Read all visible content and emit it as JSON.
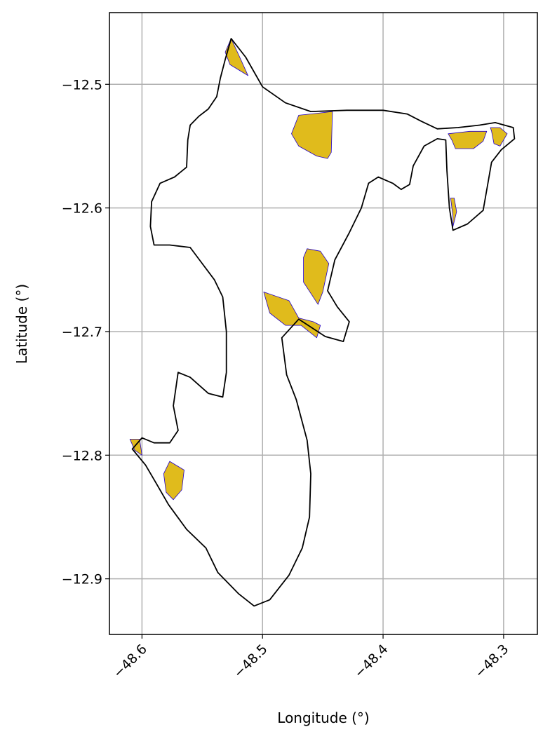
{
  "chart_data": {
    "type": "map",
    "xlabel": "Longitude (°)",
    "ylabel": "Latitude (°)",
    "xlim": [
      -48.627,
      -48.272
    ],
    "ylim": [
      -12.945,
      -12.442
    ],
    "grid": true,
    "xticks": [
      -48.6,
      -48.5,
      -48.4,
      -48.3
    ],
    "yticks": [
      -12.9,
      -12.8,
      -12.7,
      -12.6,
      -12.5
    ],
    "xtick_labels": [
      "−48.6",
      "−48.5",
      "−48.4",
      "−48.3"
    ],
    "ytick_labels": [
      "−12.9",
      "−12.8",
      "−12.7",
      "−12.6",
      "−12.5"
    ],
    "boundary": {
      "stroke": "#000000",
      "points": [
        [
          -48.526,
          -12.463
        ],
        [
          -48.514,
          -12.478
        ],
        [
          -48.5,
          -12.502
        ],
        [
          -48.481,
          -12.515
        ],
        [
          -48.46,
          -12.522
        ],
        [
          -48.43,
          -12.521
        ],
        [
          -48.4,
          -12.521
        ],
        [
          -48.38,
          -12.524
        ],
        [
          -48.368,
          -12.53
        ],
        [
          -48.355,
          -12.536
        ],
        [
          -48.338,
          -12.535
        ],
        [
          -48.32,
          -12.533
        ],
        [
          -48.307,
          -12.531
        ],
        [
          -48.292,
          -12.535
        ],
        [
          -48.291,
          -12.544
        ],
        [
          -48.302,
          -12.553
        ],
        [
          -48.31,
          -12.563
        ],
        [
          -48.313,
          -12.58
        ],
        [
          -48.317,
          -12.602
        ],
        [
          -48.33,
          -12.613
        ],
        [
          -48.342,
          -12.618
        ],
        [
          -48.345,
          -12.6
        ],
        [
          -48.347,
          -12.57
        ],
        [
          -48.348,
          -12.545
        ],
        [
          -48.355,
          -12.544
        ],
        [
          -48.366,
          -12.55
        ],
        [
          -48.375,
          -12.566
        ],
        [
          -48.378,
          -12.581
        ],
        [
          -48.385,
          -12.585
        ],
        [
          -48.392,
          -12.58
        ],
        [
          -48.404,
          -12.575
        ],
        [
          -48.412,
          -12.58
        ],
        [
          -48.418,
          -12.6
        ],
        [
          -48.428,
          -12.62
        ],
        [
          -48.44,
          -12.642
        ],
        [
          -48.446,
          -12.667
        ],
        [
          -48.438,
          -12.68
        ],
        [
          -48.428,
          -12.692
        ],
        [
          -48.433,
          -12.708
        ],
        [
          -48.448,
          -12.704
        ],
        [
          -48.47,
          -12.69
        ],
        [
          -48.484,
          -12.705
        ],
        [
          -48.48,
          -12.735
        ],
        [
          -48.472,
          -12.755
        ],
        [
          -48.463,
          -12.788
        ],
        [
          -48.46,
          -12.815
        ],
        [
          -48.461,
          -12.85
        ],
        [
          -48.467,
          -12.875
        ],
        [
          -48.478,
          -12.897
        ],
        [
          -48.494,
          -12.917
        ],
        [
          -48.507,
          -12.922
        ],
        [
          -48.52,
          -12.912
        ],
        [
          -48.537,
          -12.895
        ],
        [
          -48.547,
          -12.875
        ],
        [
          -48.563,
          -12.86
        ],
        [
          -48.578,
          -12.84
        ],
        [
          -48.588,
          -12.823
        ],
        [
          -48.597,
          -12.808
        ],
        [
          -48.608,
          -12.795
        ],
        [
          -48.6,
          -12.786
        ],
        [
          -48.59,
          -12.79
        ],
        [
          -48.577,
          -12.79
        ],
        [
          -48.57,
          -12.78
        ],
        [
          -48.574,
          -12.76
        ],
        [
          -48.57,
          -12.733
        ],
        [
          -48.56,
          -12.737
        ],
        [
          -48.545,
          -12.75
        ],
        [
          -48.533,
          -12.753
        ],
        [
          -48.53,
          -12.733
        ],
        [
          -48.53,
          -12.7
        ],
        [
          -48.533,
          -12.672
        ],
        [
          -48.54,
          -12.658
        ],
        [
          -48.55,
          -12.645
        ],
        [
          -48.56,
          -12.632
        ],
        [
          -48.577,
          -12.63
        ],
        [
          -48.59,
          -12.63
        ],
        [
          -48.593,
          -12.615
        ],
        [
          -48.592,
          -12.595
        ],
        [
          -48.585,
          -12.58
        ],
        [
          -48.573,
          -12.575
        ],
        [
          -48.563,
          -12.567
        ],
        [
          -48.562,
          -12.545
        ],
        [
          -48.56,
          -12.533
        ],
        [
          -48.553,
          -12.526
        ],
        [
          -48.545,
          -12.52
        ],
        [
          -48.538,
          -12.51
        ],
        [
          -48.535,
          -12.495
        ],
        [
          -48.531,
          -12.48
        ],
        [
          -48.526,
          -12.463
        ]
      ]
    },
    "patches": {
      "fill": "#e0bb1c",
      "stroke": "#2200cc",
      "polygons": [
        [
          [
            -48.526,
            -12.463
          ],
          [
            -48.518,
            -12.48
          ],
          [
            -48.512,
            -12.493
          ],
          [
            -48.527,
            -12.484
          ],
          [
            -48.531,
            -12.474
          ]
        ],
        [
          [
            -48.46,
            -12.524
          ],
          [
            -48.442,
            -12.522
          ],
          [
            -48.443,
            -12.555
          ],
          [
            -48.446,
            -12.56
          ],
          [
            -48.455,
            -12.558
          ],
          [
            -48.47,
            -12.55
          ],
          [
            -48.476,
            -12.54
          ],
          [
            -48.47,
            -12.525
          ]
        ],
        [
          [
            -48.346,
            -12.54
          ],
          [
            -48.328,
            -12.538
          ],
          [
            -48.314,
            -12.538
          ],
          [
            -48.317,
            -12.546
          ],
          [
            -48.325,
            -12.552
          ],
          [
            -48.34,
            -12.552
          ],
          [
            -48.343,
            -12.545
          ]
        ],
        [
          [
            -48.311,
            -12.535
          ],
          [
            -48.303,
            -12.535
          ],
          [
            -48.297,
            -12.54
          ],
          [
            -48.303,
            -12.55
          ],
          [
            -48.308,
            -12.548
          ],
          [
            -48.31,
            -12.538
          ]
        ],
        [
          [
            -48.344,
            -12.592
          ],
          [
            -48.342,
            -12.607
          ],
          [
            -48.342,
            -12.615
          ],
          [
            -48.339,
            -12.603
          ],
          [
            -48.341,
            -12.592
          ]
        ],
        [
          [
            -48.463,
            -12.633
          ],
          [
            -48.452,
            -12.635
          ],
          [
            -48.445,
            -12.645
          ],
          [
            -48.45,
            -12.668
          ],
          [
            -48.454,
            -12.678
          ],
          [
            -48.466,
            -12.66
          ],
          [
            -48.466,
            -12.64
          ]
        ],
        [
          [
            -48.499,
            -12.668
          ],
          [
            -48.478,
            -12.675
          ],
          [
            -48.47,
            -12.689
          ],
          [
            -48.458,
            -12.692
          ],
          [
            -48.452,
            -12.695
          ],
          [
            -48.455,
            -12.705
          ],
          [
            -48.468,
            -12.695
          ],
          [
            -48.481,
            -12.695
          ],
          [
            -48.494,
            -12.685
          ]
        ],
        [
          [
            -48.577,
            -12.805
          ],
          [
            -48.565,
            -12.812
          ],
          [
            -48.567,
            -12.828
          ],
          [
            -48.574,
            -12.836
          ],
          [
            -48.58,
            -12.83
          ],
          [
            -48.582,
            -12.815
          ]
        ],
        [
          [
            -48.61,
            -12.787
          ],
          [
            -48.602,
            -12.787
          ],
          [
            -48.6,
            -12.8
          ],
          [
            -48.606,
            -12.796
          ]
        ]
      ]
    }
  }
}
